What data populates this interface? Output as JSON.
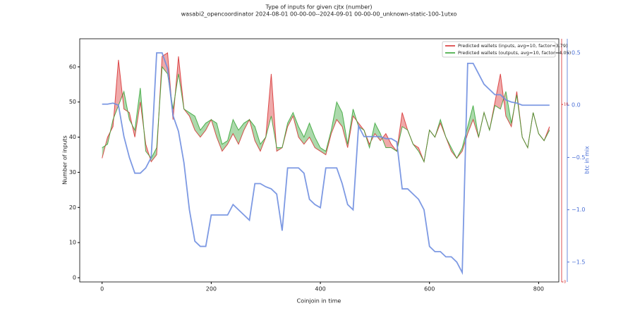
{
  "chart_data": {
    "type": "line",
    "title": "Type of inputs for given cjtx (number)",
    "subtitle": "wasabi2_opencoordinator 2024-08-01 00-00-00--2024-09-01 00-00-00_unknown-static-100-1utxo",
    "xlabel": "Coinjoin in time",
    "ylabel": "Number of inputs",
    "y2label": "btc in mix",
    "legend": "upper right",
    "xlim": [
      -41,
      837
    ],
    "xticks": [
      0,
      200,
      400,
      600,
      800
    ],
    "ylim": [
      -1.2,
      68
    ],
    "yticks": [
      0,
      10,
      20,
      30,
      40,
      50,
      60
    ],
    "y2lim": [
      -1.69,
      0.635
    ],
    "y2ticks": [
      {
        "value": -1.5,
        "label": "−1.5"
      },
      {
        "value": -1.0,
        "label": "−1.0"
      },
      {
        "value": -0.5,
        "label": "−0.5"
      },
      {
        "value": 0.0,
        "label": "0.0"
      },
      {
        "value": 0.5,
        "label": "0.5"
      }
    ],
    "y3lim": [
      0,
      13.7
    ],
    "y3ticks": [
      0,
      10
    ],
    "y3color": "#d62728",
    "x": [
      0,
      10,
      20,
      30,
      40,
      50,
      60,
      70,
      80,
      90,
      100,
      110,
      120,
      130,
      140,
      150,
      160,
      170,
      180,
      190,
      200,
      210,
      220,
      230,
      240,
      250,
      260,
      270,
      280,
      290,
      300,
      310,
      320,
      330,
      340,
      350,
      360,
      370,
      380,
      390,
      400,
      410,
      420,
      430,
      440,
      450,
      460,
      470,
      480,
      490,
      500,
      510,
      520,
      530,
      540,
      550,
      560,
      570,
      580,
      590,
      600,
      610,
      620,
      630,
      640,
      650,
      660,
      670,
      680,
      690,
      700,
      710,
      720,
      730,
      740,
      750,
      760,
      770,
      780,
      790,
      800,
      810,
      820
    ],
    "series": [
      {
        "name": "Predicted wallets (inputs, avg=10, factor=3.79)",
        "color": "#d62728",
        "values": [
          34,
          40,
          43,
          62,
          48,
          47,
          40,
          50,
          38,
          33,
          35,
          63,
          64,
          45,
          63,
          48,
          46,
          42,
          40,
          42,
          45,
          40,
          36,
          38,
          41,
          38,
          42,
          45,
          39,
          36,
          40,
          58,
          36,
          37,
          43,
          46,
          40,
          38,
          40,
          37,
          36,
          35,
          41,
          45,
          43,
          37,
          46,
          44,
          42,
          38,
          41,
          39,
          41,
          38,
          36,
          47,
          42,
          38,
          37,
          33,
          42,
          40,
          44,
          40,
          36,
          34,
          36,
          41,
          45,
          40,
          47,
          42,
          50,
          58,
          46,
          43,
          53,
          40,
          37,
          47,
          41,
          39,
          43
        ]
      },
      {
        "name": "Predicted wallets (outputs, avg=10, factor=4.05)",
        "color": "#2ca02c",
        "values": [
          37,
          38,
          45,
          49,
          53,
          45,
          42,
          54,
          36,
          34,
          37,
          60,
          58,
          48,
          58,
          48,
          47,
          46,
          42,
          44,
          45,
          44,
          38,
          39,
          45,
          42,
          44,
          45,
          43,
          38,
          40,
          46,
          37,
          37,
          44,
          47,
          43,
          40,
          44,
          40,
          37,
          36,
          42,
          50,
          47,
          38,
          48,
          43,
          42,
          37,
          44,
          41,
          37,
          37,
          36,
          43,
          42,
          38,
          36,
          33,
          42,
          40,
          45,
          40,
          37,
          34,
          37,
          43,
          49,
          40,
          47,
          42,
          49,
          48,
          53,
          44,
          52,
          40,
          37,
          47,
          41,
          39,
          42
        ]
      },
      {
        "name": "btc in mix",
        "color": "#6f8ee0",
        "axis": "y2",
        "values": [
          0.01,
          0.01,
          0.02,
          0.0,
          -0.3,
          -0.5,
          -0.65,
          -0.65,
          -0.6,
          -0.5,
          0.5,
          0.5,
          0.35,
          -0.1,
          -0.25,
          -0.55,
          -1.0,
          -1.3,
          -1.35,
          -1.35,
          -1.05,
          -1.05,
          -1.05,
          -1.05,
          -0.95,
          -1.0,
          -1.05,
          -1.1,
          -0.75,
          -0.75,
          -0.78,
          -0.8,
          -0.85,
          -1.2,
          -0.6,
          -0.6,
          -0.6,
          -0.65,
          -0.9,
          -0.95,
          -0.98,
          -0.6,
          -0.6,
          -0.6,
          -0.75,
          -0.95,
          -1.0,
          -0.2,
          -0.3,
          -0.3,
          -0.3,
          -0.3,
          -0.32,
          -0.32,
          -0.35,
          -0.8,
          -0.8,
          -0.85,
          -0.9,
          -1.0,
          -1.35,
          -1.4,
          -1.4,
          -1.45,
          -1.45,
          -1.5,
          -1.6,
          0.4,
          0.4,
          0.3,
          0.2,
          0.15,
          0.1,
          0.1,
          0.05,
          0.03,
          0.02,
          0.0,
          0.0,
          0.0,
          0.0,
          0.0,
          0.0
        ]
      }
    ]
  }
}
